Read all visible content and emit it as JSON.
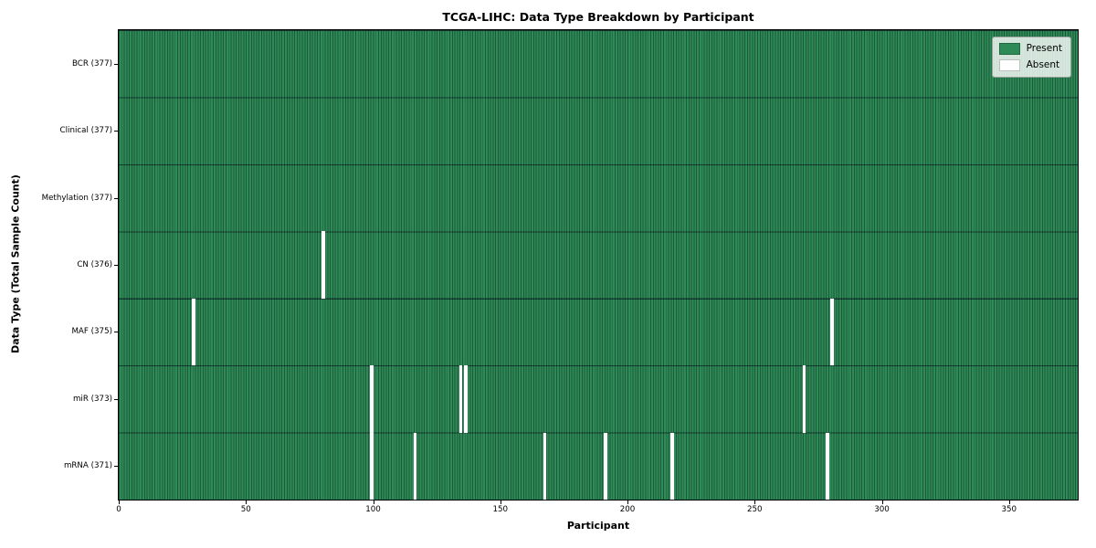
{
  "chart_data": {
    "type": "heatmap",
    "title": "TCGA-LIHC: Data Type Breakdown by Participant",
    "xlabel": "Participant",
    "ylabel": "Data Type (Total Sample Count)",
    "n_participants": 377,
    "x_ticks": [
      0,
      50,
      100,
      150,
      200,
      250,
      300,
      350
    ],
    "colors": {
      "present": "#2e8b57",
      "absent": "#ffffff"
    },
    "legend": [
      {
        "label": "Present",
        "color": "#2e8b57"
      },
      {
        "label": "Absent",
        "color": "#ffffff"
      }
    ],
    "legend_position": "upper right",
    "grid": true,
    "rows": [
      {
        "label": "BCR (377)",
        "name": "BCR",
        "total": 377,
        "absent_participants": []
      },
      {
        "label": "Clinical (377)",
        "name": "Clinical",
        "total": 377,
        "absent_participants": []
      },
      {
        "label": "Methylation (377)",
        "name": "Methylation",
        "total": 377,
        "absent_participants": []
      },
      {
        "label": "CN (376)",
        "name": "CN",
        "total": 376,
        "absent_participants": [
          80
        ]
      },
      {
        "label": "MAF (375)",
        "name": "MAF",
        "total": 375,
        "absent_participants": [
          29,
          280
        ]
      },
      {
        "label": "miR (373)",
        "name": "miR",
        "total": 373,
        "absent_participants": [
          99,
          134,
          136,
          269
        ]
      },
      {
        "label": "mRNA (371)",
        "name": "mRNA",
        "total": 371,
        "absent_participants": [
          99,
          116,
          167,
          191,
          217,
          278
        ]
      }
    ]
  }
}
